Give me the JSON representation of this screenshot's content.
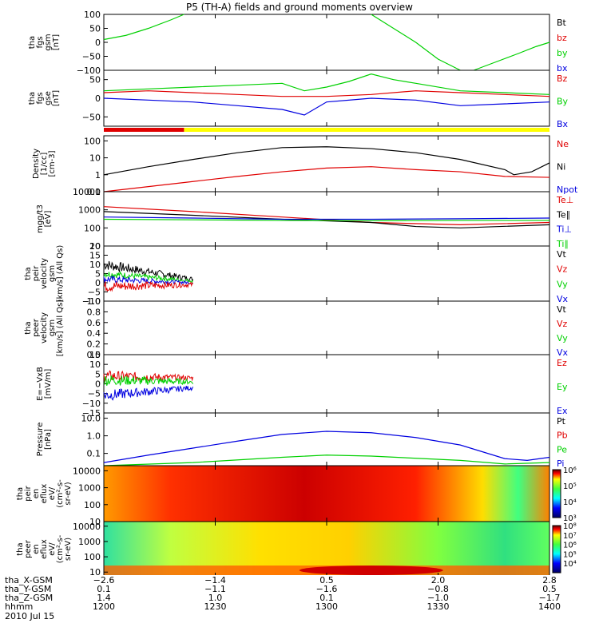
{
  "title": "P5 (TH-A) fields and ground moments overview",
  "colors": {
    "black": "#000000",
    "red": "#e00000",
    "green": "#00d000",
    "blue": "#0000e0",
    "yellow": "#ffff00"
  },
  "chart_data": {
    "type": "line",
    "x_ticks": [
      "1200",
      "1230",
      "1300",
      "1330",
      "1400"
    ],
    "panels": [
      {
        "id": "fgs_gsm_1",
        "ylabel": [
          "tha",
          "fgs",
          "gsm",
          "[nT]"
        ],
        "ylim": [
          -100,
          100
        ],
        "yticks": [
          {
            "v": 100,
            "t": "100"
          },
          {
            "v": 50,
            "t": "50"
          },
          {
            "v": 0,
            "t": "0"
          },
          {
            "v": -50,
            "t": "−50"
          },
          {
            "v": -100,
            "t": "−100"
          }
        ],
        "legend": [
          {
            "text": "Bt",
            "color": "black"
          },
          {
            "text": "bz",
            "color": "red"
          },
          {
            "text": "by",
            "color": "green"
          },
          {
            "text": "bx",
            "color": "blue"
          }
        ],
        "series": [
          {
            "color": "green",
            "x": [
              0,
              0.05,
              0.1,
              0.15,
              0.18
            ],
            "y": [
              10,
              25,
              50,
              80,
              100
            ]
          },
          {
            "color": "green",
            "x": [
              0.6,
              0.65,
              0.7,
              0.75,
              0.8
            ],
            "y": [
              100,
              50,
              0,
              -60,
              -100
            ]
          },
          {
            "color": "green",
            "x": [
              0.83,
              0.88,
              0.93,
              0.97,
              1.0
            ],
            "y": [
              -100,
              -70,
              -40,
              -15,
              0
            ]
          }
        ]
      },
      {
        "id": "fgs_gsm_2",
        "ylabel": [
          "tha",
          "fgs",
          "gse",
          "[nT]"
        ],
        "ylim": [
          -75,
          75
        ],
        "yticks": [
          {
            "v": 50,
            "t": "50"
          },
          {
            "v": 0,
            "t": "0"
          },
          {
            "v": -50,
            "t": "−50"
          }
        ],
        "legend": [
          {
            "text": "Bz",
            "color": "red"
          },
          {
            "text": "By",
            "color": "green"
          },
          {
            "text": "Bx",
            "color": "blue"
          }
        ],
        "series": [
          {
            "color": "green",
            "x": [
              0,
              0.1,
              0.2,
              0.3,
              0.4,
              0.45,
              0.5,
              0.55,
              0.6,
              0.65,
              0.7,
              0.8,
              0.9,
              1.0
            ],
            "y": [
              20,
              25,
              30,
              35,
              40,
              20,
              30,
              45,
              65,
              50,
              40,
              20,
              15,
              10
            ]
          },
          {
            "color": "red",
            "x": [
              0,
              0.1,
              0.2,
              0.3,
              0.4,
              0.5,
              0.6,
              0.7,
              0.8,
              0.9,
              1.0
            ],
            "y": [
              15,
              20,
              15,
              10,
              5,
              5,
              10,
              20,
              15,
              10,
              5
            ]
          },
          {
            "color": "blue",
            "x": [
              0,
              0.1,
              0.2,
              0.3,
              0.4,
              0.45,
              0.5,
              0.6,
              0.7,
              0.8,
              0.9,
              1.0
            ],
            "y": [
              0,
              -5,
              -10,
              -20,
              -30,
              -45,
              -10,
              0,
              -5,
              -20,
              -15,
              -10
            ]
          }
        ],
        "status_bar": [
          {
            "x0": 0,
            "x1": 0.18,
            "color": "red"
          },
          {
            "x0": 0.18,
            "x1": 1,
            "color": "yellow"
          }
        ]
      },
      {
        "id": "density",
        "ylabel": [
          "Density",
          "[1/cc]",
          "[cm-3]"
        ],
        "ylim_log": [
          0.1,
          200
        ],
        "yticks": [
          {
            "v": 100,
            "t": "100"
          },
          {
            "v": 10,
            "t": "10"
          },
          {
            "v": 1,
            "t": "1"
          },
          {
            "v": 0.1,
            "t": "0.1"
          }
        ],
        "legend": [
          {
            "text": "Ne",
            "color": "red"
          },
          {
            "text": "Ni",
            "color": "black"
          },
          {
            "text": "Npot",
            "color": "blue"
          }
        ],
        "series": [
          {
            "color": "black",
            "x": [
              0,
              0.1,
              0.2,
              0.3,
              0.4,
              0.5,
              0.6,
              0.7,
              0.8,
              0.9,
              0.92,
              0.96,
              1.0
            ],
            "y": [
              1,
              3,
              8,
              20,
              40,
              45,
              35,
              20,
              8,
              2,
              1,
              1.5,
              5
            ]
          },
          {
            "color": "red",
            "x": [
              0,
              0.1,
              0.2,
              0.3,
              0.4,
              0.5,
              0.6,
              0.7,
              0.8,
              0.9,
              1.0
            ],
            "y": [
              0.1,
              0.2,
              0.4,
              0.8,
              1.5,
              2.5,
              3,
              2,
              1.5,
              0.8,
              0.7
            ]
          }
        ]
      },
      {
        "id": "temperature",
        "ylabel": [
          "mgg/t3",
          "[eV]"
        ],
        "ylim_log": [
          10,
          10000
        ],
        "yticks": [
          {
            "v": 10000,
            "t": "10000"
          },
          {
            "v": 1000,
            "t": "1000"
          },
          {
            "v": 100,
            "t": "100"
          },
          {
            "v": 10,
            "t": "10"
          }
        ],
        "legend": [
          {
            "text": "Te⊥",
            "color": "red"
          },
          {
            "text": "Te∥",
            "color": "black"
          },
          {
            "text": "Ti⊥",
            "color": "blue"
          },
          {
            "text": "Ti∥",
            "color": "green"
          }
        ],
        "series": [
          {
            "color": "red",
            "x": [
              0,
              0.2,
              0.4,
              0.6,
              0.8,
              1.0
            ],
            "y": [
              1500,
              800,
              400,
              200,
              150,
              200
            ]
          },
          {
            "color": "black",
            "x": [
              0,
              0.2,
              0.4,
              0.6,
              0.7,
              0.8,
              1.0
            ],
            "y": [
              800,
              500,
              300,
              200,
              120,
              100,
              150
            ]
          },
          {
            "color": "blue",
            "x": [
              0,
              0.2,
              0.4,
              0.6,
              0.8,
              1.0
            ],
            "y": [
              400,
              350,
              300,
              300,
              320,
              350
            ]
          },
          {
            "color": "green",
            "x": [
              0,
              0.2,
              0.4,
              0.6,
              0.8,
              1.0
            ],
            "y": [
              300,
              280,
              260,
              250,
              260,
              260
            ]
          }
        ]
      },
      {
        "id": "peir_velocity",
        "ylabel": [
          "tha",
          "peir",
          "velocity",
          "gsm",
          "[km/s] (All Qs)"
        ],
        "ylim": [
          -10,
          20
        ],
        "yticks": [
          {
            "v": 20,
            "t": "20"
          },
          {
            "v": 15,
            "t": "15"
          },
          {
            "v": 10,
            "t": "10"
          },
          {
            "v": 5,
            "t": "5"
          },
          {
            "v": 0,
            "t": "0"
          },
          {
            "v": -5,
            "t": "−5"
          },
          {
            "v": -10,
            "t": "−10"
          }
        ],
        "legend": [
          {
            "text": "Vt",
            "color": "black"
          },
          {
            "text": "Vz",
            "color": "red"
          },
          {
            "text": "Vy",
            "color": "green"
          },
          {
            "text": "Vx",
            "color": "blue"
          }
        ],
        "noise": [
          {
            "color": "black",
            "x0": 0,
            "x1": 0.2,
            "y0": 10,
            "y1": 2,
            "amp": 3
          },
          {
            "color": "green",
            "x0": 0,
            "x1": 0.2,
            "y0": 5,
            "y1": 1,
            "amp": 2
          },
          {
            "color": "blue",
            "x0": 0,
            "x1": 0.2,
            "y0": 2,
            "y1": 0,
            "amp": 2
          },
          {
            "color": "red",
            "x0": 0,
            "x1": 0.2,
            "y0": -2,
            "y1": -1,
            "amp": 3
          }
        ]
      },
      {
        "id": "peer_velocity",
        "ylabel": [
          "tha",
          "peer",
          "velocity",
          "gsm",
          "[km/s] (All Qs)"
        ],
        "ylim": [
          0,
          1
        ],
        "yticks": [
          {
            "v": 1.0,
            "t": "1.0"
          },
          {
            "v": 0.8,
            "t": "0.8"
          },
          {
            "v": 0.6,
            "t": "0.6"
          },
          {
            "v": 0.4,
            "t": "0.4"
          },
          {
            "v": 0.2,
            "t": "0.2"
          },
          {
            "v": 0.0,
            "t": "0.0"
          }
        ],
        "legend": [
          {
            "text": "Vt",
            "color": "black"
          },
          {
            "text": "Vz",
            "color": "red"
          },
          {
            "text": "Vy",
            "color": "green"
          },
          {
            "text": "Vx",
            "color": "blue"
          }
        ],
        "series": []
      },
      {
        "id": "efield",
        "ylabel": [
          "E=−VxB",
          "[mV/m]"
        ],
        "ylim": [
          -15,
          15
        ],
        "yticks": [
          {
            "v": 15,
            "t": "15"
          },
          {
            "v": 10,
            "t": "10"
          },
          {
            "v": 5,
            "t": "5"
          },
          {
            "v": 0,
            "t": "0"
          },
          {
            "v": -5,
            "t": "−5"
          },
          {
            "v": -10,
            "t": "−10"
          },
          {
            "v": -15,
            "t": "−15"
          }
        ],
        "legend": [
          {
            "text": "Ez",
            "color": "red"
          },
          {
            "text": "Ey",
            "color": "green"
          },
          {
            "text": "Ex",
            "color": "blue"
          }
        ],
        "noise": [
          {
            "color": "red",
            "x0": 0,
            "x1": 0.2,
            "y0": 4,
            "y1": 3,
            "amp": 3
          },
          {
            "color": "green",
            "x0": 0,
            "x1": 0.2,
            "y0": 2,
            "y1": 1,
            "amp": 3
          },
          {
            "color": "blue",
            "x0": 0,
            "x1": 0.2,
            "y0": -6,
            "y1": -2,
            "amp": 3
          }
        ]
      },
      {
        "id": "pressure",
        "ylabel": [
          "Pressure",
          "[nPa]"
        ],
        "ylim_log": [
          0.02,
          20
        ],
        "yticks": [
          {
            "v": 10,
            "t": "10.0"
          },
          {
            "v": 1,
            "t": "1.0"
          },
          {
            "v": 0.1,
            "t": "0.1"
          }
        ],
        "legend": [
          {
            "text": "Pt",
            "color": "black"
          },
          {
            "text": "Pb",
            "color": "red"
          },
          {
            "text": "Pe",
            "color": "green"
          },
          {
            "text": "Pi",
            "color": "blue"
          }
        ],
        "series": [
          {
            "color": "blue",
            "x": [
              0,
              0.1,
              0.2,
              0.3,
              0.4,
              0.5,
              0.6,
              0.7,
              0.8,
              0.9,
              0.95,
              1.0
            ],
            "y": [
              0.03,
              0.08,
              0.2,
              0.5,
              1.2,
              1.8,
              1.5,
              0.8,
              0.3,
              0.05,
              0.04,
              0.06
            ]
          },
          {
            "color": "green",
            "x": [
              0,
              0.2,
              0.4,
              0.5,
              0.6,
              0.8,
              0.9,
              1.0
            ],
            "y": [
              0.02,
              0.03,
              0.06,
              0.08,
              0.07,
              0.04,
              0.025,
              0.03
            ]
          }
        ]
      },
      {
        "id": "peir_spec",
        "type": "heatmap",
        "ylabel": [
          "tha",
          "peir",
          "en",
          "eflux",
          "eV/",
          "(cm²-s-",
          "sr-eV)"
        ],
        "ylim_log": [
          10,
          20000
        ],
        "yticks": [
          {
            "v": 10000,
            "t": "10000"
          },
          {
            "v": 1000,
            "t": "1000"
          },
          {
            "v": 100,
            "t": "100"
          },
          {
            "v": 10,
            "t": "10"
          }
        ],
        "colorbar": {
          "ticks": [
            {
              "v": 1,
              "t": "10⁶"
            },
            {
              "v": 0.67,
              "t": "10⁵"
            },
            {
              "v": 0.33,
              "t": "10⁴"
            },
            {
              "v": 0,
              "t": "10³"
            }
          ]
        }
      },
      {
        "id": "peer_spec",
        "type": "heatmap",
        "ylabel": [
          "tha",
          "peer",
          "en",
          "eflux",
          "eV/",
          "(cm²-s-",
          "sr-eV)"
        ],
        "ylim_log": [
          5,
          20000
        ],
        "yticks": [
          {
            "v": 10000,
            "t": "10000"
          },
          {
            "v": 1000,
            "t": "1000"
          },
          {
            "v": 100,
            "t": "100"
          },
          {
            "v": 10,
            "t": "10"
          }
        ],
        "colorbar": {
          "ticks": [
            {
              "v": 1,
              "t": "10⁸"
            },
            {
              "v": 0.8,
              "t": "10⁷"
            },
            {
              "v": 0.6,
              "t": "10⁶"
            },
            {
              "v": 0.4,
              "t": "10⁵"
            },
            {
              "v": 0.2,
              "t": "10⁴"
            }
          ]
        }
      }
    ]
  },
  "footer": {
    "rows": [
      {
        "label": "tha_X-GSM",
        "values": [
          "−2.6",
          "−1.4",
          "0.5",
          "2.0",
          "2.8"
        ],
        "sub": [
          "",
          "",
          "",
          "",
          ""
        ]
      },
      {
        "label": "tha_Y-GSM",
        "values": [
          "0.1",
          "−1.1",
          "−1.6",
          "−0.8",
          "0.5"
        ]
      },
      {
        "label": "tha_Z-GSM",
        "values": [
          "1.4",
          "1.0",
          "0.1",
          "−1.0",
          "−1.7"
        ]
      },
      {
        "label": "hhmm",
        "values": [
          "1200",
          "1230",
          "1300",
          "1330",
          "1400"
        ]
      }
    ],
    "date": "2010 Jul 15"
  }
}
